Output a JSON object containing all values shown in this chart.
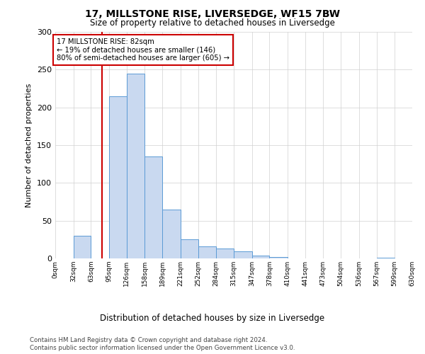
{
  "title": "17, MILLSTONE RISE, LIVERSEDGE, WF15 7BW",
  "subtitle": "Size of property relative to detached houses in Liversedge",
  "xlabel": "Distribution of detached houses by size in Liversedge",
  "ylabel": "Number of detached properties",
  "bar_values": [
    0,
    30,
    0,
    215,
    245,
    135,
    65,
    25,
    16,
    13,
    9,
    4,
    2,
    0,
    0,
    0,
    0,
    0,
    1,
    0
  ],
  "bin_labels": [
    "0sqm",
    "32sqm",
    "63sqm",
    "95sqm",
    "126sqm",
    "158sqm",
    "189sqm",
    "221sqm",
    "252sqm",
    "284sqm",
    "315sqm",
    "347sqm",
    "378sqm",
    "410sqm",
    "441sqm",
    "473sqm",
    "504sqm",
    "536sqm",
    "567sqm",
    "599sqm",
    "630sqm"
  ],
  "bar_color": "#c9d9f0",
  "bar_edge_color": "#5b9bd5",
  "vline_x": 82,
  "vline_color": "#cc0000",
  "annotation_text": "17 MILLSTONE RISE: 82sqm\n← 19% of detached houses are smaller (146)\n80% of semi-detached houses are larger (605) →",
  "annotation_box_color": "#ffffff",
  "annotation_box_edge": "#cc0000",
  "ylim": [
    0,
    300
  ],
  "yticks": [
    0,
    50,
    100,
    150,
    200,
    250,
    300
  ],
  "footer_line1": "Contains HM Land Registry data © Crown copyright and database right 2024.",
  "footer_line2": "Contains public sector information licensed under the Open Government Licence v3.0.",
  "background_color": "#ffffff",
  "grid_color": "#d0d0d0",
  "bin_edges": [
    0,
    32,
    63,
    95,
    126,
    158,
    189,
    221,
    252,
    284,
    315,
    347,
    378,
    410,
    441,
    473,
    504,
    536,
    567,
    599,
    630
  ]
}
